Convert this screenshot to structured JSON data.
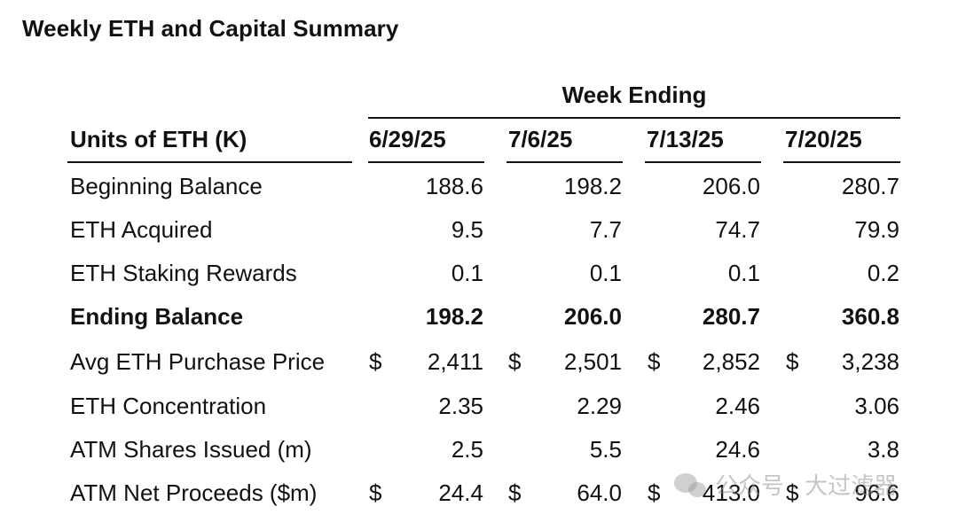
{
  "title": "Weekly ETH and Capital Summary",
  "week_ending_label": "Week Ending",
  "row_header": "Units of ETH (K)",
  "columns": [
    "6/29/25",
    "7/6/25",
    "7/13/25",
    "7/20/25"
  ],
  "rows": [
    {
      "label": "Beginning Balance",
      "values": [
        "188.6",
        "198.2",
        "206.0",
        "280.7"
      ],
      "bold": false,
      "dollar": false
    },
    {
      "label": "ETH Acquired",
      "values": [
        "9.5",
        "7.7",
        "74.7",
        "79.9"
      ],
      "bold": false,
      "dollar": false
    },
    {
      "label": "ETH Staking Rewards",
      "values": [
        "0.1",
        "0.1",
        "0.1",
        "0.2"
      ],
      "bold": false,
      "dollar": false
    },
    {
      "label": "Ending Balance",
      "values": [
        "198.2",
        "206.0",
        "280.7",
        "360.8"
      ],
      "bold": true,
      "dollar": false
    },
    {
      "label": "Avg ETH Purchase Price",
      "values": [
        "2,411",
        "2,501",
        "2,852",
        "3,238"
      ],
      "bold": false,
      "dollar": true
    },
    {
      "label": "ETH Concentration",
      "values": [
        "2.35",
        "2.29",
        "2.46",
        "3.06"
      ],
      "bold": false,
      "dollar": false
    },
    {
      "label": "ATM Shares Issued (m)",
      "values": [
        "2.5",
        "5.5",
        "24.6",
        "3.8"
      ],
      "bold": false,
      "dollar": false
    },
    {
      "label": "ATM Net Proceeds ($m)",
      "values": [
        "24.4",
        "64.0",
        "413.0",
        "96.6"
      ],
      "bold": false,
      "dollar": true
    }
  ],
  "dollar_sign": "$",
  "watermark": {
    "text": "公众号 · 大过滤器",
    "icon": "wechat-icon"
  }
}
